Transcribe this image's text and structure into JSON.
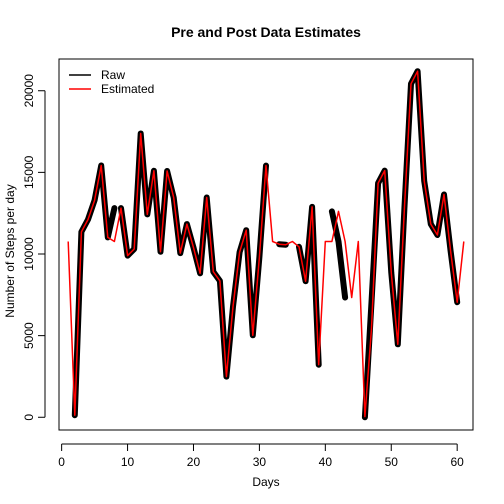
{
  "chart_data": {
    "type": "line",
    "title": "Pre and Post Data Estimates",
    "xlabel": "Days",
    "ylabel": "Number of Steps per day",
    "xlim": [
      -0.4,
      62.4
    ],
    "ylim": [
      -780,
      21944
    ],
    "x_ticks": [
      0,
      10,
      20,
      30,
      40,
      50,
      60
    ],
    "y_ticks": [
      0,
      5000,
      10000,
      15000,
      20000
    ],
    "legend_position": "top-left",
    "series": [
      {
        "name": "Raw",
        "color": "#000000",
        "segments": [
          [
            [
              2,
              126
            ],
            [
              3,
              11352
            ],
            [
              4,
              12116
            ],
            [
              5,
              13294
            ],
            [
              6,
              15420
            ],
            [
              7,
              11015
            ],
            [
              8,
              12811
            ]
          ],
          [
            [
              9,
              12811
            ],
            [
              10,
              9900
            ],
            [
              11,
              10304
            ],
            [
              12,
              17382
            ],
            [
              13,
              12426
            ],
            [
              14,
              15098
            ],
            [
              15,
              10139
            ],
            [
              16,
              15084
            ],
            [
              17,
              13452
            ],
            [
              18,
              10056
            ],
            [
              19,
              11829
            ],
            [
              20,
              10395
            ],
            [
              21,
              8821
            ],
            [
              22,
              13460
            ],
            [
              23,
              8918
            ],
            [
              24,
              8355
            ],
            [
              25,
              2492
            ],
            [
              26,
              6778
            ],
            [
              27,
              10119
            ],
            [
              28,
              11458
            ],
            [
              29,
              5018
            ],
            [
              30,
              9819
            ],
            [
              31,
              15414
            ]
          ],
          [
            [
              33,
              10600
            ],
            [
              34,
              10571
            ]
          ],
          [
            [
              36,
              10439
            ],
            [
              37,
              8334
            ],
            [
              38,
              12883
            ],
            [
              39,
              3219
            ]
          ],
          [
            [
              41,
              12608
            ],
            [
              42,
              10765
            ],
            [
              43,
              7336
            ]
          ],
          [
            [
              46,
              0
            ],
            [
              47,
              7047
            ],
            [
              48,
              14339
            ],
            [
              49,
              15110
            ],
            [
              50,
              8841
            ],
            [
              51,
              4472
            ],
            [
              52,
              12787
            ],
            [
              53,
              20427
            ],
            [
              54,
              21194
            ],
            [
              55,
              14478
            ],
            [
              56,
              11834
            ],
            [
              57,
              11162
            ],
            [
              58,
              13646
            ],
            [
              59,
              10183
            ],
            [
              60,
              7047
            ]
          ]
        ]
      },
      {
        "name": "Estimated",
        "color": "#ff0000",
        "points": [
          [
            1,
            10766
          ],
          [
            2,
            126
          ],
          [
            3,
            11352
          ],
          [
            4,
            12116
          ],
          [
            5,
            13294
          ],
          [
            6,
            15420
          ],
          [
            7,
            11015
          ],
          [
            8,
            10766
          ],
          [
            9,
            12811
          ],
          [
            10,
            9900
          ],
          [
            11,
            10304
          ],
          [
            12,
            17382
          ],
          [
            13,
            12426
          ],
          [
            14,
            15098
          ],
          [
            15,
            10139
          ],
          [
            16,
            15084
          ],
          [
            17,
            13452
          ],
          [
            18,
            10056
          ],
          [
            19,
            11829
          ],
          [
            20,
            10395
          ],
          [
            21,
            8821
          ],
          [
            22,
            13460
          ],
          [
            23,
            8918
          ],
          [
            24,
            8355
          ],
          [
            25,
            2492
          ],
          [
            26,
            6778
          ],
          [
            27,
            10119
          ],
          [
            28,
            11458
          ],
          [
            29,
            5018
          ],
          [
            30,
            9819
          ],
          [
            31,
            15414
          ],
          [
            32,
            10766
          ],
          [
            33,
            10600
          ],
          [
            34,
            10571
          ],
          [
            35,
            10766
          ],
          [
            36,
            10439
          ],
          [
            37,
            8334
          ],
          [
            38,
            12883
          ],
          [
            39,
            3219
          ],
          [
            40,
            10766
          ],
          [
            41,
            10766
          ],
          [
            42,
            12608
          ],
          [
            43,
            10765
          ],
          [
            44,
            7336
          ],
          [
            45,
            10766
          ],
          [
            46,
            41
          ],
          [
            47,
            5441
          ],
          [
            48,
            14339
          ],
          [
            49,
            15110
          ],
          [
            50,
            8841
          ],
          [
            51,
            4472
          ],
          [
            52,
            12787
          ],
          [
            53,
            20427
          ],
          [
            54,
            21194
          ],
          [
            55,
            14478
          ],
          [
            56,
            11834
          ],
          [
            57,
            11162
          ],
          [
            58,
            13646
          ],
          [
            59,
            10183
          ],
          [
            60,
            7047
          ],
          [
            61,
            10766
          ]
        ]
      }
    ]
  }
}
